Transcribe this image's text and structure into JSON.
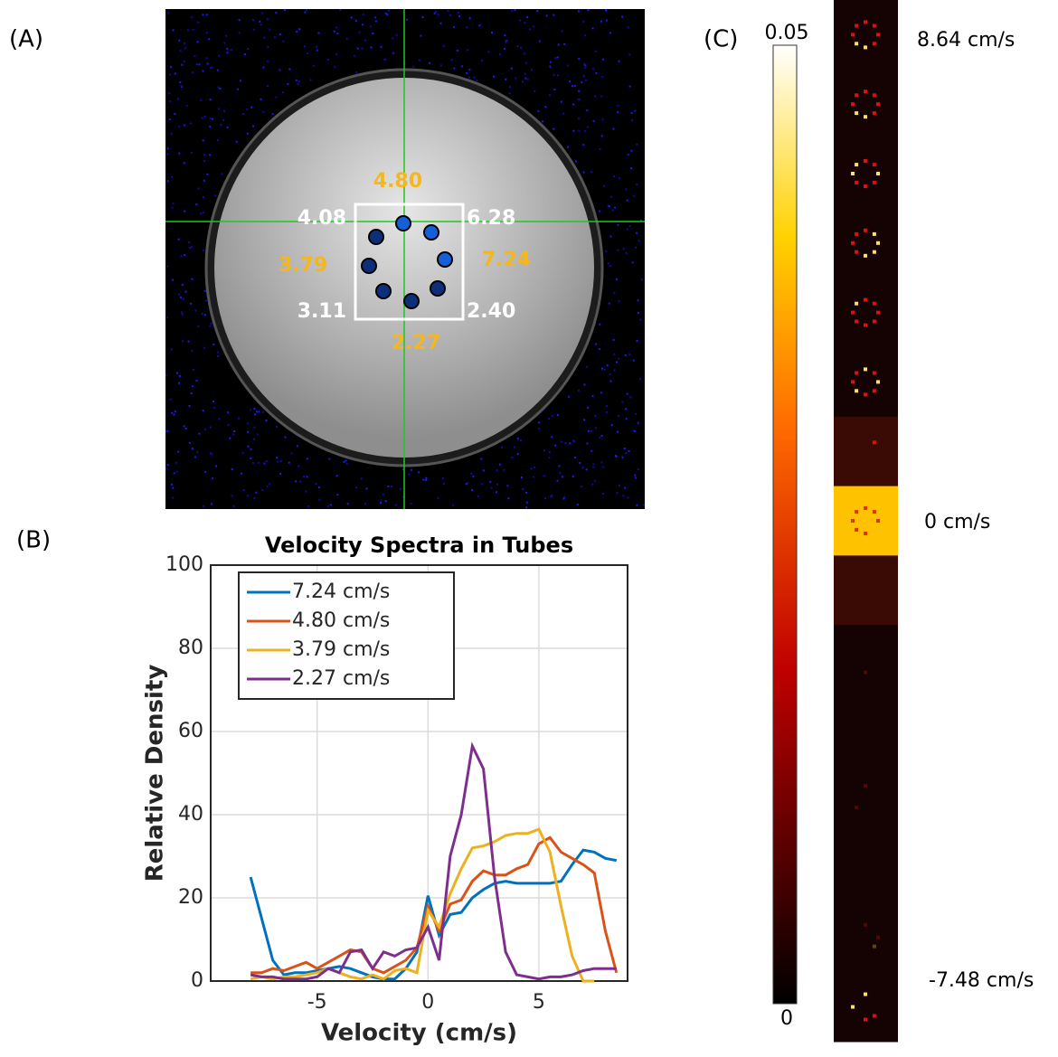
{
  "panel_labels": [
    "(A)",
    "(B)",
    "(C)"
  ],
  "panel_a": {
    "tube_labels": [
      {
        "text": "4.80",
        "color": "#f5b71b"
      },
      {
        "text": "4.08",
        "color": "#ffffff"
      },
      {
        "text": "6.28",
        "color": "#ffffff"
      },
      {
        "text": "3.79",
        "color": "#f5b71b"
      },
      {
        "text": "7.24",
        "color": "#f5b71b"
      },
      {
        "text": "3.11",
        "color": "#ffffff"
      },
      {
        "text": "2.40",
        "color": "#ffffff"
      },
      {
        "text": "2.27",
        "color": "#f5b71b"
      }
    ]
  },
  "chart_data": {
    "type": "line",
    "title": "Velocity Spectra in Tubes",
    "x_label": "Velocity (cm/s)",
    "y_label": "Relative Density",
    "x": [
      -8,
      -7.5,
      -7,
      -6.5,
      -6,
      -5.5,
      -5,
      -4.5,
      -4,
      -3.5,
      -3,
      -2.5,
      -2,
      -1.5,
      -1,
      -0.5,
      0,
      0.5,
      1,
      1.5,
      2,
      2.5,
      3,
      3.5,
      4,
      4.5,
      5,
      5.5,
      6,
      6.5,
      7,
      7.5,
      8,
      8.5
    ],
    "series": [
      {
        "name": "7.24 cm/s",
        "color": "#0072bd",
        "values": [
          25,
          15,
          5,
          1.5,
          2,
          2,
          2.5,
          3,
          3.5,
          3,
          2,
          1,
          0.5,
          0.5,
          3,
          7,
          20.5,
          11,
          16,
          16.5,
          20,
          22,
          23.5,
          24,
          23.5,
          23.5,
          23.5,
          23.5,
          24,
          28,
          31.5,
          31,
          29.5,
          29
        ]
      },
      {
        "name": "4.80 cm/s",
        "color": "#d95319",
        "values": [
          2,
          2,
          3,
          2.5,
          3.5,
          4.5,
          3,
          4.5,
          6,
          7.5,
          7,
          3,
          2,
          3.5,
          5,
          8,
          18,
          12,
          18.5,
          19.5,
          24,
          26.5,
          25.5,
          25.5,
          27,
          28,
          33,
          34.5,
          31,
          29.5,
          28,
          26,
          12,
          2
        ]
      },
      {
        "name": "3.79 cm/s",
        "color": "#edb120",
        "values": [
          0.5,
          1,
          0.5,
          1,
          1,
          1.5,
          2,
          3,
          2,
          1,
          0.5,
          1.5,
          0.5,
          2.5,
          3,
          2,
          17,
          13,
          21,
          27,
          32,
          32.5,
          33.5,
          35,
          35.5,
          35.5,
          36.5,
          31,
          18,
          6,
          0,
          0,
          null,
          null
        ]
      },
      {
        "name": "2.27 cm/s",
        "color": "#7e2f8e",
        "values": [
          1.5,
          1,
          1,
          0.5,
          0.5,
          0.5,
          1,
          3,
          2,
          7,
          7.5,
          3,
          7,
          6,
          7.5,
          8,
          13,
          5,
          30,
          40,
          56.5,
          51,
          25,
          7,
          1.5,
          1,
          0.5,
          1,
          1,
          1.5,
          2.5,
          3,
          3,
          3
        ]
      }
    ],
    "xlim": [
      -9.8,
      9
    ],
    "xticks": [
      -5,
      0,
      5
    ],
    "ylim": [
      0,
      100
    ],
    "yticks": [
      0,
      20,
      40,
      60,
      80,
      100
    ],
    "grid": true,
    "legend": "upper-left"
  },
  "panel_c": {
    "colorbar": {
      "ylim": [
        0,
        0.05
      ],
      "yticks": [
        0,
        0.05
      ]
    },
    "velocity_labels": [
      "8.64 cm/s",
      "0 cm/s",
      "-7.48 cm/s"
    ]
  }
}
